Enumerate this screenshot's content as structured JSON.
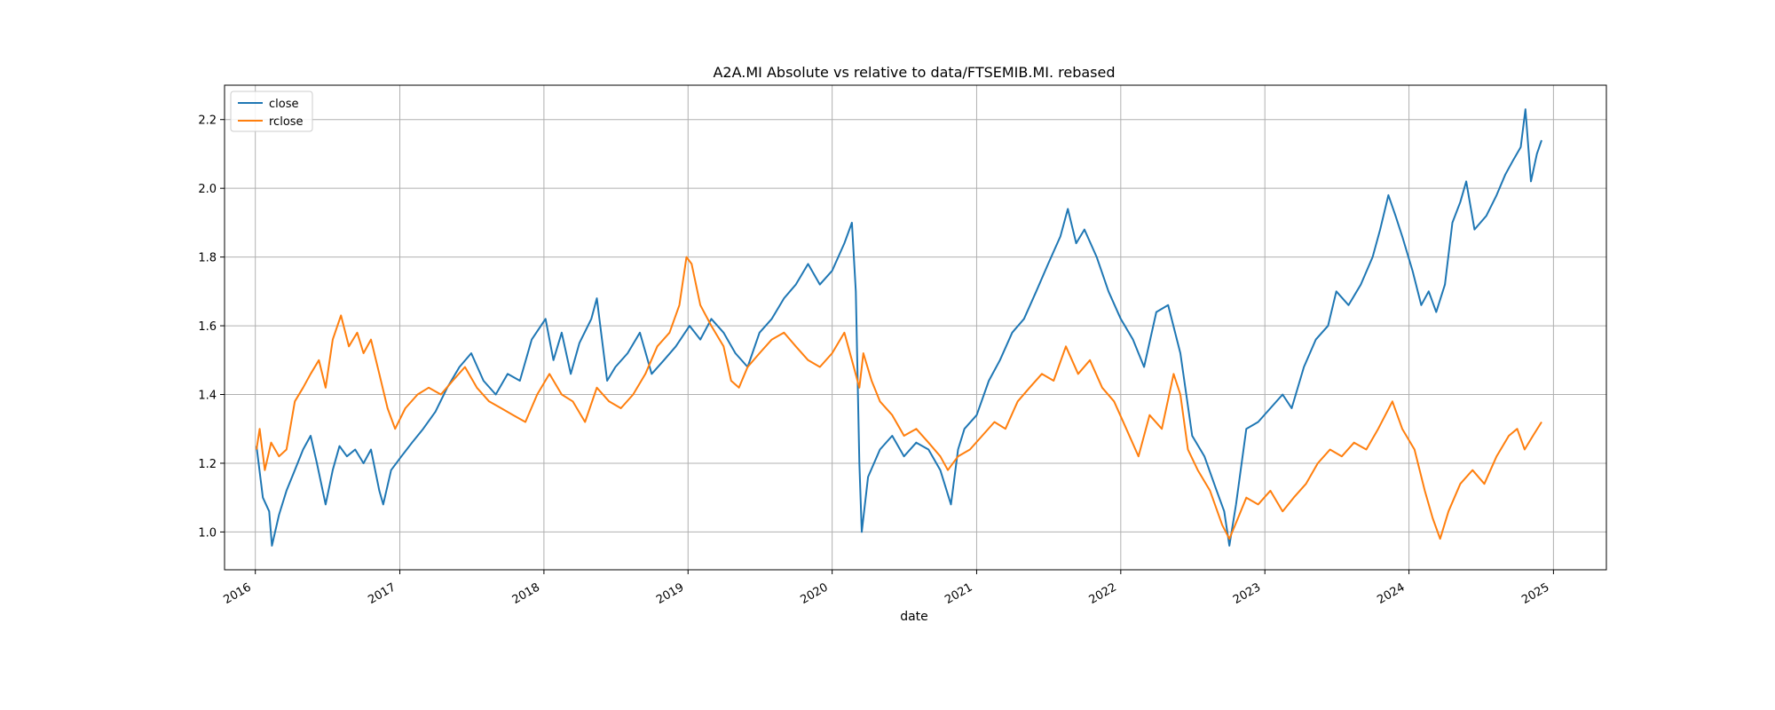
{
  "chart_data": {
    "type": "line",
    "title": "A2A.MI Absolute vs relative to data/FTSEMIB.MI. rebased",
    "xlabel": "date",
    "ylabel": "",
    "x_type": "date",
    "xlim": [
      "2015-10-15",
      "2025-05-15"
    ],
    "ylim": [
      0.89,
      2.3
    ],
    "x_tick_labels": [
      "2016",
      "2017",
      "2018",
      "2019",
      "2020",
      "2021",
      "2022",
      "2023",
      "2024",
      "2025"
    ],
    "x_ticks": [
      "2016-01-01",
      "2017-01-01",
      "2018-01-01",
      "2019-01-01",
      "2020-01-01",
      "2021-01-01",
      "2022-01-01",
      "2023-01-01",
      "2024-01-01",
      "2025-01-01"
    ],
    "y_ticks": [
      1.0,
      1.2,
      1.4,
      1.6,
      1.8,
      2.0,
      2.2
    ],
    "y_tick_labels": [
      "1.0",
      "1.2",
      "1.4",
      "1.6",
      "1.8",
      "2.0",
      "2.2"
    ],
    "grid": true,
    "legend_position": "top-left",
    "series": [
      {
        "name": "close",
        "color": "#1f77b4",
        "points": [
          [
            "2016-01-04",
            1.25
          ],
          [
            "2016-01-20",
            1.1
          ],
          [
            "2016-02-05",
            1.06
          ],
          [
            "2016-02-12",
            0.96
          ],
          [
            "2016-03-01",
            1.05
          ],
          [
            "2016-03-20",
            1.12
          ],
          [
            "2016-04-10",
            1.18
          ],
          [
            "2016-05-01",
            1.24
          ],
          [
            "2016-05-20",
            1.28
          ],
          [
            "2016-06-05",
            1.2
          ],
          [
            "2016-06-27",
            1.08
          ],
          [
            "2016-07-15",
            1.18
          ],
          [
            "2016-08-01",
            1.25
          ],
          [
            "2016-08-20",
            1.22
          ],
          [
            "2016-09-10",
            1.24
          ],
          [
            "2016-10-01",
            1.2
          ],
          [
            "2016-10-20",
            1.24
          ],
          [
            "2016-11-10",
            1.12
          ],
          [
            "2016-11-20",
            1.08
          ],
          [
            "2016-12-10",
            1.18
          ],
          [
            "2017-01-05",
            1.22
          ],
          [
            "2017-02-01",
            1.26
          ],
          [
            "2017-03-01",
            1.3
          ],
          [
            "2017-04-01",
            1.35
          ],
          [
            "2017-05-01",
            1.42
          ],
          [
            "2017-06-01",
            1.48
          ],
          [
            "2017-07-01",
            1.52
          ],
          [
            "2017-08-01",
            1.44
          ],
          [
            "2017-09-01",
            1.4
          ],
          [
            "2017-10-01",
            1.46
          ],
          [
            "2017-11-01",
            1.44
          ],
          [
            "2017-12-01",
            1.56
          ],
          [
            "2018-01-05",
            1.62
          ],
          [
            "2018-01-25",
            1.5
          ],
          [
            "2018-02-15",
            1.58
          ],
          [
            "2018-03-10",
            1.46
          ],
          [
            "2018-04-01",
            1.55
          ],
          [
            "2018-05-01",
            1.62
          ],
          [
            "2018-05-15",
            1.68
          ],
          [
            "2018-06-10",
            1.44
          ],
          [
            "2018-07-01",
            1.48
          ],
          [
            "2018-08-01",
            1.52
          ],
          [
            "2018-09-01",
            1.58
          ],
          [
            "2018-10-01",
            1.46
          ],
          [
            "2018-11-01",
            1.5
          ],
          [
            "2018-12-01",
            1.54
          ],
          [
            "2019-01-05",
            1.6
          ],
          [
            "2019-02-01",
            1.56
          ],
          [
            "2019-03-01",
            1.62
          ],
          [
            "2019-04-01",
            1.58
          ],
          [
            "2019-05-01",
            1.52
          ],
          [
            "2019-06-01",
            1.48
          ],
          [
            "2019-07-01",
            1.58
          ],
          [
            "2019-08-01",
            1.62
          ],
          [
            "2019-09-01",
            1.68
          ],
          [
            "2019-10-01",
            1.72
          ],
          [
            "2019-11-01",
            1.78
          ],
          [
            "2019-12-01",
            1.72
          ],
          [
            "2020-01-01",
            1.76
          ],
          [
            "2020-02-01",
            1.84
          ],
          [
            "2020-02-20",
            1.9
          ],
          [
            "2020-03-01",
            1.7
          ],
          [
            "2020-03-10",
            1.2
          ],
          [
            "2020-03-16",
            1.0
          ],
          [
            "2020-04-01",
            1.16
          ],
          [
            "2020-05-01",
            1.24
          ],
          [
            "2020-06-01",
            1.28
          ],
          [
            "2020-07-01",
            1.22
          ],
          [
            "2020-08-01",
            1.26
          ],
          [
            "2020-09-01",
            1.24
          ],
          [
            "2020-10-01",
            1.18
          ],
          [
            "2020-10-28",
            1.08
          ],
          [
            "2020-11-15",
            1.24
          ],
          [
            "2020-12-01",
            1.3
          ],
          [
            "2021-01-01",
            1.34
          ],
          [
            "2021-02-01",
            1.44
          ],
          [
            "2021-03-01",
            1.5
          ],
          [
            "2021-04-01",
            1.58
          ],
          [
            "2021-05-01",
            1.62
          ],
          [
            "2021-06-01",
            1.7
          ],
          [
            "2021-07-01",
            1.78
          ],
          [
            "2021-08-01",
            1.86
          ],
          [
            "2021-08-20",
            1.94
          ],
          [
            "2021-09-10",
            1.84
          ],
          [
            "2021-10-01",
            1.88
          ],
          [
            "2021-11-01",
            1.8
          ],
          [
            "2021-12-01",
            1.7
          ],
          [
            "2022-01-01",
            1.62
          ],
          [
            "2022-02-01",
            1.56
          ],
          [
            "2022-03-01",
            1.48
          ],
          [
            "2022-04-01",
            1.64
          ],
          [
            "2022-05-01",
            1.66
          ],
          [
            "2022-06-01",
            1.52
          ],
          [
            "2022-07-01",
            1.28
          ],
          [
            "2022-08-01",
            1.22
          ],
          [
            "2022-09-01",
            1.12
          ],
          [
            "2022-09-20",
            1.06
          ],
          [
            "2022-10-03",
            0.96
          ],
          [
            "2022-10-20",
            1.08
          ],
          [
            "2022-11-15",
            1.3
          ],
          [
            "2022-12-15",
            1.32
          ],
          [
            "2023-01-15",
            1.36
          ],
          [
            "2023-02-15",
            1.4
          ],
          [
            "2023-03-10",
            1.36
          ],
          [
            "2023-04-10",
            1.48
          ],
          [
            "2023-05-10",
            1.56
          ],
          [
            "2023-06-10",
            1.6
          ],
          [
            "2023-07-01",
            1.7
          ],
          [
            "2023-08-01",
            1.66
          ],
          [
            "2023-09-01",
            1.72
          ],
          [
            "2023-10-01",
            1.8
          ],
          [
            "2023-10-20",
            1.88
          ],
          [
            "2023-11-10",
            1.98
          ],
          [
            "2023-11-28",
            1.92
          ],
          [
            "2023-12-15",
            1.86
          ],
          [
            "2024-01-10",
            1.76
          ],
          [
            "2024-02-01",
            1.66
          ],
          [
            "2024-02-20",
            1.7
          ],
          [
            "2024-03-10",
            1.64
          ],
          [
            "2024-04-01",
            1.72
          ],
          [
            "2024-04-20",
            1.9
          ],
          [
            "2024-05-10",
            1.96
          ],
          [
            "2024-05-25",
            2.02
          ],
          [
            "2024-06-15",
            1.88
          ],
          [
            "2024-07-15",
            1.92
          ],
          [
            "2024-08-10",
            1.98
          ],
          [
            "2024-09-01",
            2.04
          ],
          [
            "2024-09-20",
            2.08
          ],
          [
            "2024-10-10",
            2.12
          ],
          [
            "2024-10-22",
            2.23
          ],
          [
            "2024-11-05",
            2.02
          ],
          [
            "2024-11-20",
            2.1
          ],
          [
            "2024-12-02",
            2.14
          ]
        ]
      },
      {
        "name": "rclose",
        "color": "#ff7f0e",
        "points": [
          [
            "2016-01-04",
            1.24
          ],
          [
            "2016-01-12",
            1.3
          ],
          [
            "2016-01-25",
            1.18
          ],
          [
            "2016-02-10",
            1.26
          ],
          [
            "2016-03-01",
            1.22
          ],
          [
            "2016-03-20",
            1.24
          ],
          [
            "2016-04-10",
            1.38
          ],
          [
            "2016-05-01",
            1.42
          ],
          [
            "2016-05-20",
            1.46
          ],
          [
            "2016-06-10",
            1.5
          ],
          [
            "2016-06-27",
            1.42
          ],
          [
            "2016-07-15",
            1.56
          ],
          [
            "2016-08-05",
            1.63
          ],
          [
            "2016-08-25",
            1.54
          ],
          [
            "2016-09-15",
            1.58
          ],
          [
            "2016-10-01",
            1.52
          ],
          [
            "2016-10-20",
            1.56
          ],
          [
            "2016-11-10",
            1.46
          ],
          [
            "2016-12-01",
            1.36
          ],
          [
            "2016-12-20",
            1.3
          ],
          [
            "2017-01-15",
            1.36
          ],
          [
            "2017-02-15",
            1.4
          ],
          [
            "2017-03-15",
            1.42
          ],
          [
            "2017-04-15",
            1.4
          ],
          [
            "2017-05-15",
            1.44
          ],
          [
            "2017-06-15",
            1.48
          ],
          [
            "2017-07-15",
            1.42
          ],
          [
            "2017-08-15",
            1.38
          ],
          [
            "2017-09-15",
            1.36
          ],
          [
            "2017-10-15",
            1.34
          ],
          [
            "2017-11-15",
            1.32
          ],
          [
            "2017-12-15",
            1.4
          ],
          [
            "2018-01-15",
            1.46
          ],
          [
            "2018-02-15",
            1.4
          ],
          [
            "2018-03-15",
            1.38
          ],
          [
            "2018-04-15",
            1.32
          ],
          [
            "2018-05-15",
            1.42
          ],
          [
            "2018-06-15",
            1.38
          ],
          [
            "2018-07-15",
            1.36
          ],
          [
            "2018-08-15",
            1.4
          ],
          [
            "2018-09-15",
            1.46
          ],
          [
            "2018-10-15",
            1.54
          ],
          [
            "2018-11-15",
            1.58
          ],
          [
            "2018-12-10",
            1.66
          ],
          [
            "2018-12-28",
            1.8
          ],
          [
            "2019-01-10",
            1.78
          ],
          [
            "2019-02-01",
            1.66
          ],
          [
            "2019-03-01",
            1.6
          ],
          [
            "2019-04-01",
            1.54
          ],
          [
            "2019-04-20",
            1.44
          ],
          [
            "2019-05-10",
            1.42
          ],
          [
            "2019-06-01",
            1.48
          ],
          [
            "2019-07-01",
            1.52
          ],
          [
            "2019-08-01",
            1.56
          ],
          [
            "2019-09-01",
            1.58
          ],
          [
            "2019-10-01",
            1.54
          ],
          [
            "2019-11-01",
            1.5
          ],
          [
            "2019-12-01",
            1.48
          ],
          [
            "2020-01-01",
            1.52
          ],
          [
            "2020-02-01",
            1.58
          ],
          [
            "2020-02-20",
            1.5
          ],
          [
            "2020-03-10",
            1.42
          ],
          [
            "2020-03-20",
            1.52
          ],
          [
            "2020-04-10",
            1.44
          ],
          [
            "2020-05-01",
            1.38
          ],
          [
            "2020-06-01",
            1.34
          ],
          [
            "2020-07-01",
            1.28
          ],
          [
            "2020-08-01",
            1.3
          ],
          [
            "2020-09-01",
            1.26
          ],
          [
            "2020-10-01",
            1.22
          ],
          [
            "2020-10-20",
            1.18
          ],
          [
            "2020-11-15",
            1.22
          ],
          [
            "2020-12-15",
            1.24
          ],
          [
            "2021-01-15",
            1.28
          ],
          [
            "2021-02-15",
            1.32
          ],
          [
            "2021-03-15",
            1.3
          ],
          [
            "2021-04-15",
            1.38
          ],
          [
            "2021-05-15",
            1.42
          ],
          [
            "2021-06-15",
            1.46
          ],
          [
            "2021-07-15",
            1.44
          ],
          [
            "2021-08-15",
            1.54
          ],
          [
            "2021-09-15",
            1.46
          ],
          [
            "2021-10-15",
            1.5
          ],
          [
            "2021-11-15",
            1.42
          ],
          [
            "2021-12-15",
            1.38
          ],
          [
            "2022-01-15",
            1.3
          ],
          [
            "2022-02-15",
            1.22
          ],
          [
            "2022-03-15",
            1.34
          ],
          [
            "2022-04-15",
            1.3
          ],
          [
            "2022-05-15",
            1.46
          ],
          [
            "2022-06-01",
            1.4
          ],
          [
            "2022-06-20",
            1.24
          ],
          [
            "2022-07-15",
            1.18
          ],
          [
            "2022-08-15",
            1.12
          ],
          [
            "2022-09-15",
            1.02
          ],
          [
            "2022-10-03",
            0.98
          ],
          [
            "2022-10-25",
            1.04
          ],
          [
            "2022-11-15",
            1.1
          ],
          [
            "2022-12-15",
            1.08
          ],
          [
            "2023-01-15",
            1.12
          ],
          [
            "2023-02-15",
            1.06
          ],
          [
            "2023-03-15",
            1.1
          ],
          [
            "2023-04-15",
            1.14
          ],
          [
            "2023-05-15",
            1.2
          ],
          [
            "2023-06-15",
            1.24
          ],
          [
            "2023-07-15",
            1.22
          ],
          [
            "2023-08-15",
            1.26
          ],
          [
            "2023-09-15",
            1.24
          ],
          [
            "2023-10-15",
            1.3
          ],
          [
            "2023-11-20",
            1.38
          ],
          [
            "2023-12-15",
            1.3
          ],
          [
            "2024-01-15",
            1.24
          ],
          [
            "2024-02-10",
            1.12
          ],
          [
            "2024-03-01",
            1.04
          ],
          [
            "2024-03-20",
            0.98
          ],
          [
            "2024-04-10",
            1.06
          ],
          [
            "2024-05-10",
            1.14
          ],
          [
            "2024-06-10",
            1.18
          ],
          [
            "2024-07-10",
            1.14
          ],
          [
            "2024-08-10",
            1.22
          ],
          [
            "2024-09-10",
            1.28
          ],
          [
            "2024-10-01",
            1.3
          ],
          [
            "2024-10-20",
            1.24
          ],
          [
            "2024-11-10",
            1.28
          ],
          [
            "2024-12-02",
            1.32
          ]
        ]
      }
    ]
  }
}
